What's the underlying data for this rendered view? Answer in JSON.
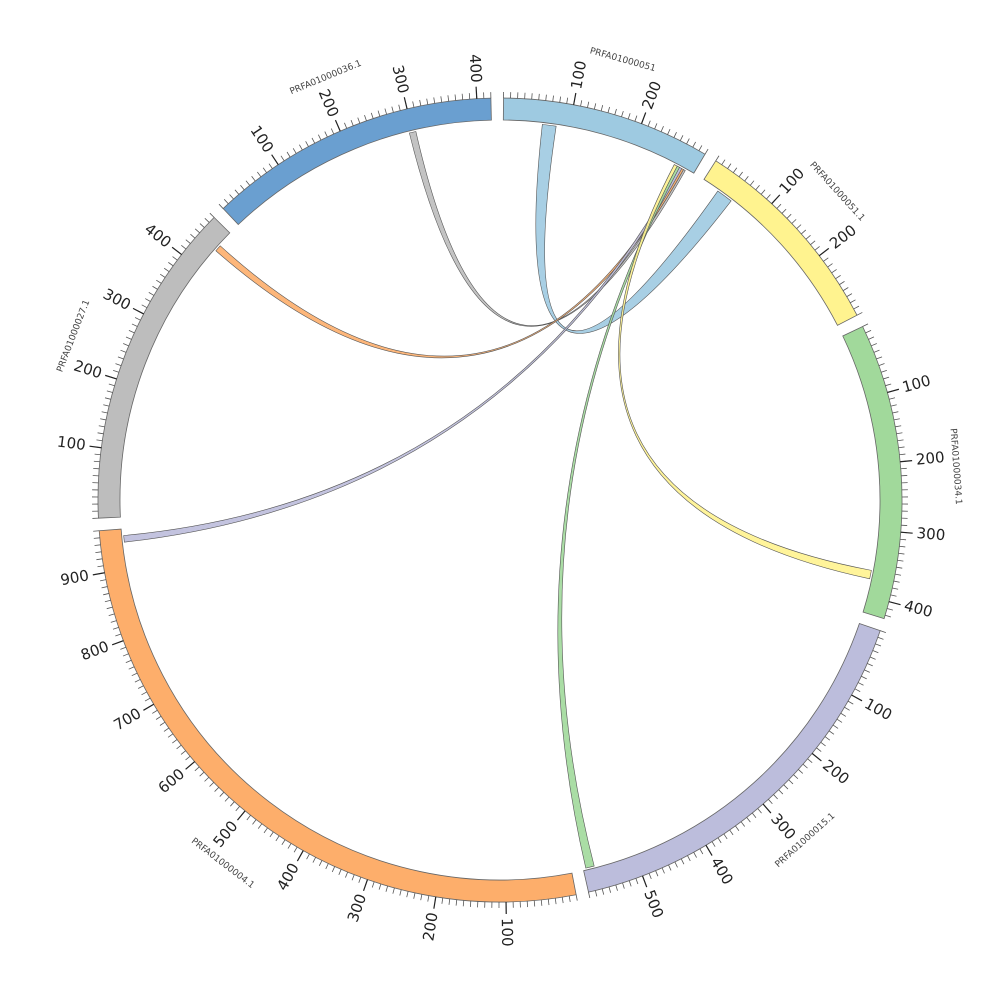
{
  "chart_data": {
    "type": "chord",
    "segments": [
      {
        "name": "PRFA01000051",
        "color": "#9ecae1",
        "length": 300,
        "ticks": [
          100,
          200
        ]
      },
      {
        "name": "PRFA01000051.1",
        "color": "#fff38f",
        "length": 300,
        "ticks": [
          100,
          200
        ]
      },
      {
        "name": "PRFA01000034.1",
        "color": "#a1d99b",
        "length": 425,
        "ticks": [
          100,
          200,
          300,
          400
        ]
      },
      {
        "name": "PRFA01000015.1",
        "color": "#bcbddc",
        "length": 580,
        "ticks": [
          100,
          200,
          300,
          400,
          500
        ]
      },
      {
        "name": "PRFA01000004.1",
        "color": "#fdae6b",
        "length": 960,
        "ticks": [
          100,
          200,
          300,
          400,
          500,
          600,
          700,
          800,
          900
        ]
      },
      {
        "name": "PRFA01000027.1",
        "color": "#bdbdbd",
        "length": 470,
        "ticks": [
          100,
          200,
          300,
          400
        ]
      },
      {
        "name": "PRFA01000036.1",
        "color": "#6a9fd0",
        "length": 420,
        "ticks": [
          100,
          200,
          300,
          400
        ]
      }
    ],
    "links": [
      {
        "color": "#bdbdbd",
        "source": {
          "segment": 6,
          "start": 295,
          "end": 305
        },
        "target": {
          "segment": 0,
          "start": 283,
          "end": 287
        }
      },
      {
        "color": "#9ecae1",
        "source": {
          "segment": 0,
          "start": 59,
          "end": 80
        },
        "target": {
          "segment": 1,
          "start": 27,
          "end": 52
        }
      },
      {
        "color": "#fdae6b",
        "source": {
          "segment": 5,
          "start": 436,
          "end": 446
        },
        "target": {
          "segment": 0,
          "start": 280,
          "end": 284
        }
      },
      {
        "color": "#bcbddc",
        "source": {
          "segment": 4,
          "start": 940,
          "end": 950
        },
        "target": {
          "segment": 0,
          "start": 277,
          "end": 281
        }
      },
      {
        "color": "#a1d99b",
        "source": {
          "segment": 3,
          "start": 563,
          "end": 576
        },
        "target": {
          "segment": 0,
          "start": 273,
          "end": 277
        }
      },
      {
        "color": "#fff38f",
        "source": {
          "segment": 2,
          "start": 361,
          "end": 374
        },
        "target": {
          "segment": 0,
          "start": 268,
          "end": 273
        }
      }
    ]
  }
}
